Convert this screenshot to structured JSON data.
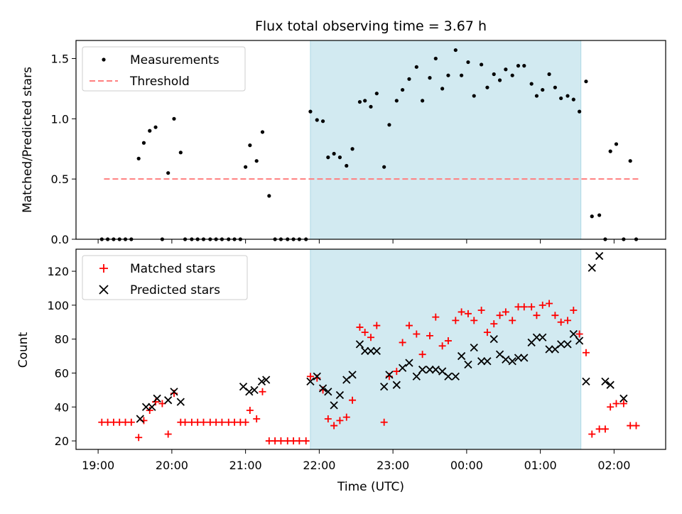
{
  "figure": {
    "title": "Flux total observing time = 3.67 h",
    "xlabel": "Time (UTC)",
    "x_ticks": [
      "19:00",
      "20:00",
      "21:00",
      "22:00",
      "23:00",
      "00:00",
      "01:00",
      "02:00"
    ],
    "shaded_interval": {
      "start_hours": 21.88,
      "end_hours": 25.55,
      "color": "#add8e6"
    }
  },
  "chart_data": [
    {
      "type": "scatter",
      "ylabel": "Matched/Predicted stars",
      "ylim": [
        0,
        1.65
      ],
      "xlim_hours": [
        18.7,
        26.7
      ],
      "y_ticks": [
        "0.0",
        "0.5",
        "1.0",
        "1.5"
      ],
      "legend": {
        "placement": "top-left",
        "entries": [
          "Measurements",
          "Threshold"
        ]
      },
      "threshold": {
        "name": "Threshold",
        "value": 0.5,
        "x_range_hours": [
          19.08,
          26.33
        ],
        "color": "#ff7f7f"
      },
      "series": [
        {
          "name": "Measurements",
          "color": "#000000",
          "marker": "dot",
          "x_hours": [
            19.05,
            19.13,
            19.21,
            19.29,
            19.37,
            19.45,
            19.55,
            19.62,
            19.7,
            19.78,
            19.87,
            19.95,
            20.03,
            20.12,
            20.18,
            20.27,
            20.35,
            20.43,
            20.52,
            20.6,
            20.68,
            20.77,
            20.85,
            20.93,
            21.0,
            21.06,
            21.15,
            21.23,
            21.32,
            21.4,
            21.48,
            21.57,
            21.65,
            21.73,
            21.82,
            21.88,
            21.97,
            22.05,
            22.12,
            22.2,
            22.28,
            22.37,
            22.45,
            22.55,
            22.62,
            22.7,
            22.78,
            22.88,
            22.95,
            23.05,
            23.13,
            23.22,
            23.32,
            23.4,
            23.5,
            23.58,
            23.67,
            23.75,
            23.85,
            23.93,
            24.02,
            24.1,
            24.2,
            24.28,
            24.37,
            24.45,
            24.53,
            24.62,
            24.7,
            24.78,
            24.88,
            24.95,
            25.03,
            25.12,
            25.2,
            25.28,
            25.37,
            25.45,
            25.53,
            25.62,
            25.7,
            25.8,
            25.88,
            25.95,
            26.03,
            26.13,
            26.22,
            26.3
          ],
          "y": [
            0,
            0,
            0,
            0,
            0,
            0,
            0.67,
            0.8,
            0.9,
            0.93,
            0,
            0.55,
            1.0,
            0.72,
            0,
            0,
            0,
            0,
            0,
            0,
            0,
            0,
            0,
            0,
            0.6,
            0.78,
            0.65,
            0.89,
            0.36,
            0,
            0,
            0,
            0,
            0,
            0,
            1.06,
            0.99,
            0.98,
            0.68,
            0.71,
            0.68,
            0.61,
            0.75,
            1.14,
            1.15,
            1.1,
            1.21,
            0.6,
            0.95,
            1.15,
            1.24,
            1.33,
            1.43,
            1.15,
            1.34,
            1.5,
            1.25,
            1.36,
            1.57,
            1.36,
            1.47,
            1.19,
            1.45,
            1.26,
            1.37,
            1.32,
            1.41,
            1.36,
            1.44,
            1.44,
            1.29,
            1.19,
            1.24,
            1.37,
            1.26,
            1.17,
            1.19,
            1.16,
            1.06,
            1.31,
            0.19,
            0.2,
            0,
            0.73,
            0.79,
            0,
            0.65,
            0
          ]
        }
      ]
    },
    {
      "type": "scatter",
      "ylabel": "Count",
      "ylim": [
        15,
        133
      ],
      "xlim_hours": [
        18.7,
        26.7
      ],
      "y_ticks": [
        "20",
        "40",
        "60",
        "80",
        "100",
        "120"
      ],
      "legend": {
        "placement": "top-left",
        "entries": [
          "Matched stars",
          "Predicted stars"
        ]
      },
      "series": [
        {
          "name": "Matched stars",
          "color": "#ff0000",
          "marker": "plus",
          "x_hours": [
            19.05,
            19.13,
            19.21,
            19.29,
            19.37,
            19.45,
            19.55,
            19.62,
            19.7,
            19.78,
            19.87,
            19.95,
            20.03,
            20.12,
            20.18,
            20.27,
            20.35,
            20.43,
            20.52,
            20.6,
            20.68,
            20.77,
            20.85,
            20.93,
            21.0,
            21.06,
            21.15,
            21.23,
            21.32,
            21.4,
            21.48,
            21.57,
            21.65,
            21.73,
            21.82,
            21.88,
            21.97,
            22.05,
            22.12,
            22.2,
            22.28,
            22.37,
            22.45,
            22.55,
            22.62,
            22.7,
            22.78,
            22.88,
            22.95,
            23.05,
            23.13,
            23.22,
            23.32,
            23.4,
            23.5,
            23.58,
            23.67,
            23.75,
            23.85,
            23.93,
            24.02,
            24.1,
            24.2,
            24.28,
            24.37,
            24.45,
            24.53,
            24.62,
            24.7,
            24.78,
            24.88,
            24.95,
            25.03,
            25.12,
            25.2,
            25.28,
            25.37,
            25.45,
            25.53,
            25.62,
            25.7,
            25.8,
            25.88,
            25.95,
            26.03,
            26.13,
            26.22,
            26.3
          ],
          "y": [
            31,
            31,
            31,
            31,
            31,
            31,
            22,
            32,
            38,
            43,
            42,
            24,
            48,
            31,
            31,
            31,
            31,
            31,
            31,
            31,
            31,
            31,
            31,
            31,
            31,
            38,
            33,
            49,
            20,
            20,
            20,
            20,
            20,
            20,
            20,
            58,
            57,
            50,
            33,
            29,
            32,
            34,
            44,
            87,
            84,
            81,
            88,
            31,
            58,
            61,
            78,
            88,
            83,
            71,
            82,
            93,
            76,
            79,
            91,
            96,
            95,
            91,
            97,
            84,
            89,
            94,
            96,
            91,
            99,
            99,
            99,
            94,
            100,
            101,
            94,
            90,
            91,
            97,
            83,
            72,
            24,
            27,
            27,
            40,
            42,
            42,
            29,
            29
          ]
        },
        {
          "name": "Predicted stars",
          "color": "#000000",
          "marker": "x",
          "x_hours": [
            19.57,
            19.65,
            19.73,
            19.8,
            19.95,
            20.03,
            20.12,
            20.97,
            21.05,
            21.12,
            21.22,
            21.28,
            21.88,
            21.97,
            22.05,
            22.12,
            22.2,
            22.28,
            22.37,
            22.45,
            22.55,
            22.62,
            22.7,
            22.78,
            22.88,
            22.95,
            23.05,
            23.13,
            23.22,
            23.32,
            23.4,
            23.5,
            23.58,
            23.67,
            23.75,
            23.85,
            23.93,
            24.02,
            24.1,
            24.2,
            24.28,
            24.37,
            24.45,
            24.53,
            24.62,
            24.7,
            24.78,
            24.88,
            24.95,
            25.03,
            25.12,
            25.2,
            25.28,
            25.37,
            25.45,
            25.53,
            25.62,
            25.7,
            25.8,
            25.88,
            25.95,
            26.13
          ],
          "y": [
            33,
            40,
            40,
            45,
            44,
            49,
            43,
            52,
            49,
            50,
            55,
            56,
            55,
            58,
            51,
            49,
            41,
            47,
            56,
            59,
            77,
            73,
            73,
            73,
            52,
            59,
            53,
            63,
            66,
            58,
            62,
            62,
            62,
            61,
            58,
            58,
            70,
            65,
            75,
            67,
            67,
            80,
            71,
            68,
            67,
            69,
            69,
            78,
            81,
            81,
            74,
            74,
            77,
            77,
            83,
            79,
            55,
            122,
            129,
            55,
            53,
            45
          ]
        }
      ]
    }
  ]
}
